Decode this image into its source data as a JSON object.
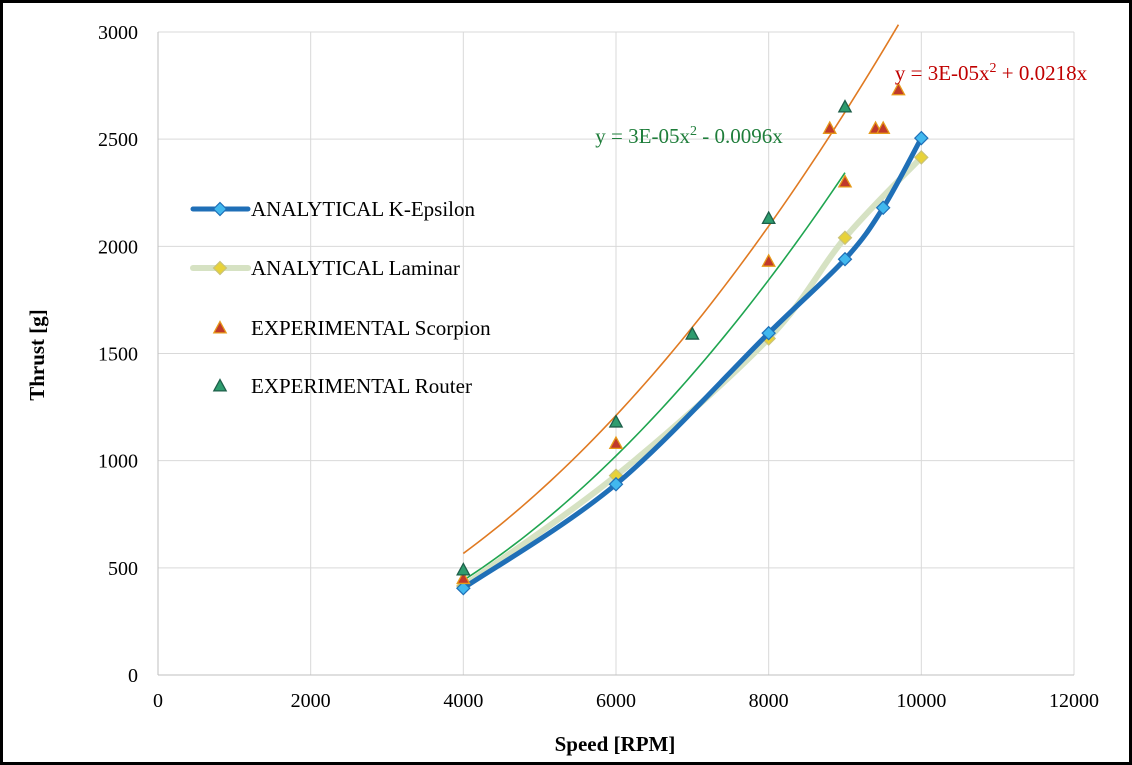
{
  "chart_data": {
    "type": "scatter",
    "xlabel": "Speed [RPM]",
    "ylabel": "Thrust [g]",
    "xlim": [
      0,
      12000
    ],
    "ylim": [
      0,
      3000
    ],
    "x_ticks": [
      "0",
      "2000",
      "4000",
      "6000",
      "8000",
      "10000",
      "12000"
    ],
    "y_ticks": [
      "0",
      "500",
      "1000",
      "1500",
      "2000",
      "2500",
      "3000"
    ],
    "grid": true,
    "legend_position": "left",
    "series": [
      {
        "name": "ANALYTICAL K-Epsilon",
        "kind": "line-marker",
        "marker": "diamond",
        "line_color": "#1f6fb7",
        "marker_color": "#41b8ee",
        "x": [
          4000,
          6000,
          8000,
          9000,
          9500,
          10000
        ],
        "y": [
          405,
          890,
          1595,
          1940,
          2180,
          2505
        ]
      },
      {
        "name": "ANALYTICAL Laminar",
        "kind": "line-marker",
        "marker": "diamond",
        "line_color": "#d6e2c3",
        "marker_color": "#e7d23a",
        "x": [
          4000,
          6000,
          8000,
          9000,
          10000
        ],
        "y": [
          415,
          930,
          1570,
          2040,
          2415
        ]
      },
      {
        "name": "EXPERIMENTAL Scorpion",
        "kind": "marker",
        "marker": "triangle",
        "marker_color": "#c0392b",
        "marker_edge": "#e69a1a",
        "trendline_color": "#e07a22",
        "x": [
          4000,
          6000,
          8000,
          8800,
          9000,
          9400,
          9500,
          9700
        ],
        "y": [
          450,
          1080,
          1930,
          2550,
          2300,
          2550,
          2550,
          2730
        ]
      },
      {
        "name": "EXPERIMENTAL Router",
        "kind": "marker",
        "marker": "triangle",
        "marker_color": "#2e9c6e",
        "marker_edge": "#1e5f4a",
        "trendline_color": "#1fa550",
        "x": [
          4000,
          6000,
          7000,
          8000,
          9000
        ],
        "y": [
          490,
          1180,
          1590,
          2130,
          2650
        ]
      }
    ],
    "trendlines": [
      {
        "series": "EXPERIMENTAL Scorpion",
        "equation": "y = 3E-05x² + 0.0218x",
        "a": 3e-05,
        "b": 0.0218,
        "x_range": [
          4000,
          9700
        ],
        "color": "#c00000"
      },
      {
        "series": "EXPERIMENTAL Router",
        "equation": "y = 3E-05x² - 0.0096x",
        "a": 3e-05,
        "b": -0.0096,
        "x_range": [
          4000,
          9000
        ],
        "color": "#1e7d3a"
      }
    ]
  }
}
